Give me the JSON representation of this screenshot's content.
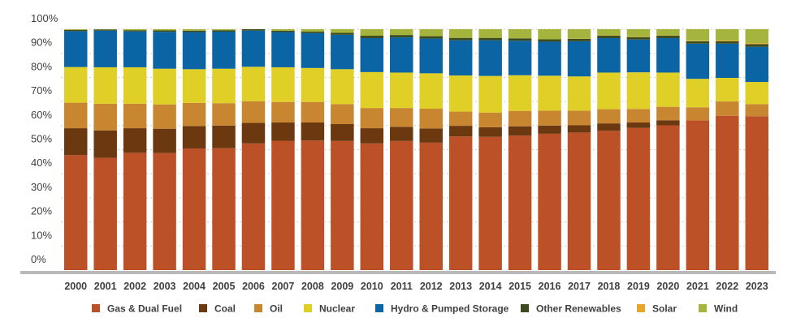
{
  "chart_data": {
    "type": "bar",
    "stacked": true,
    "percent": true,
    "categories": [
      "2000",
      "2001",
      "2002",
      "2003",
      "2004",
      "2005",
      "2006",
      "2007",
      "2008",
      "2009",
      "2010",
      "2011",
      "2012",
      "2013",
      "2014",
      "2015",
      "2016",
      "2017",
      "2018",
      "2019",
      "2020",
      "2021",
      "2022",
      "2023"
    ],
    "y_ticks": [
      "0%",
      "10%",
      "20%",
      "30%",
      "40%",
      "50%",
      "60%",
      "70%",
      "80%",
      "90%",
      "100%"
    ],
    "ylim": [
      0,
      100
    ],
    "grid": true,
    "legend_position": "bottom",
    "series": [
      {
        "name": "Gas & Dual Fuel",
        "color": "#bc5128",
        "values": [
          47.7,
          46.6,
          48.7,
          48.6,
          50.5,
          50.6,
          52.6,
          53.7,
          53.8,
          53.6,
          52.6,
          53.6,
          52.9,
          55.5,
          55.3,
          55.8,
          56.6,
          57.1,
          57.8,
          59.0,
          60.1,
          62.1,
          64.0,
          63.9
        ]
      },
      {
        "name": "Coal",
        "color": "#6b3810",
        "values": [
          11.2,
          11.4,
          10.2,
          10.1,
          9.3,
          9.4,
          8.5,
          7.6,
          7.5,
          7.0,
          6.3,
          5.9,
          5.9,
          4.4,
          4.0,
          3.9,
          3.4,
          3.0,
          3.1,
          2.3,
          2.1,
          0.0,
          0.0,
          0.0
        ]
      },
      {
        "name": "Oil",
        "color": "#c98631",
        "values": [
          10.6,
          11.1,
          10.2,
          10.1,
          9.6,
          9.3,
          9.0,
          8.5,
          8.5,
          8.3,
          8.4,
          7.8,
          8.2,
          5.9,
          6.1,
          6.4,
          6.2,
          6.1,
          5.9,
          5.6,
          5.6,
          5.5,
          6.0,
          5.0
        ]
      },
      {
        "name": "Nuclear",
        "color": "#dfcf26",
        "values": [
          14.8,
          15.1,
          15.1,
          14.8,
          14.0,
          14.3,
          14.3,
          14.4,
          14.1,
          14.5,
          14.9,
          14.7,
          14.7,
          15.0,
          15.2,
          14.8,
          14.5,
          14.2,
          15.2,
          15.2,
          14.2,
          11.8,
          9.8,
          9.2
        ]
      },
      {
        "name": "Hydro & Pumped Storage",
        "color": "#0b64a3",
        "values": [
          14.9,
          15.2,
          14.9,
          15.3,
          15.4,
          15.4,
          15.0,
          14.6,
          14.5,
          14.3,
          14.1,
          14.6,
          14.4,
          14.6,
          14.8,
          14.3,
          14.1,
          14.6,
          14.3,
          13.6,
          14.3,
          14.6,
          14.2,
          14.6
        ]
      },
      {
        "name": "Other Renewables",
        "color": "#3c4b1e",
        "values": [
          0.5,
          0.5,
          0.5,
          0.6,
          0.6,
          0.6,
          0.6,
          0.6,
          0.6,
          0.8,
          1.0,
          1.0,
          1.0,
          1.0,
          1.0,
          1.0,
          1.0,
          1.0,
          1.0,
          1.0,
          1.0,
          1.0,
          1.0,
          1.1
        ]
      },
      {
        "name": "Solar",
        "color": "#e9a52a",
        "values": [
          0.0,
          0.0,
          0.0,
          0.0,
          0.0,
          0.0,
          0.0,
          0.0,
          0.0,
          0.0,
          0.0,
          0.0,
          0.0,
          0.0,
          0.0,
          0.0,
          0.0,
          0.1,
          0.1,
          0.1,
          0.1,
          0.2,
          0.3,
          0.4
        ]
      },
      {
        "name": "Wind",
        "color": "#a5b43c",
        "values": [
          0.3,
          0.1,
          0.4,
          0.5,
          0.6,
          0.4,
          0.0,
          0.6,
          1.0,
          1.5,
          2.7,
          2.4,
          2.9,
          3.6,
          3.6,
          3.8,
          4.2,
          3.9,
          2.6,
          3.2,
          2.6,
          4.8,
          4.7,
          5.8
        ]
      }
    ]
  }
}
